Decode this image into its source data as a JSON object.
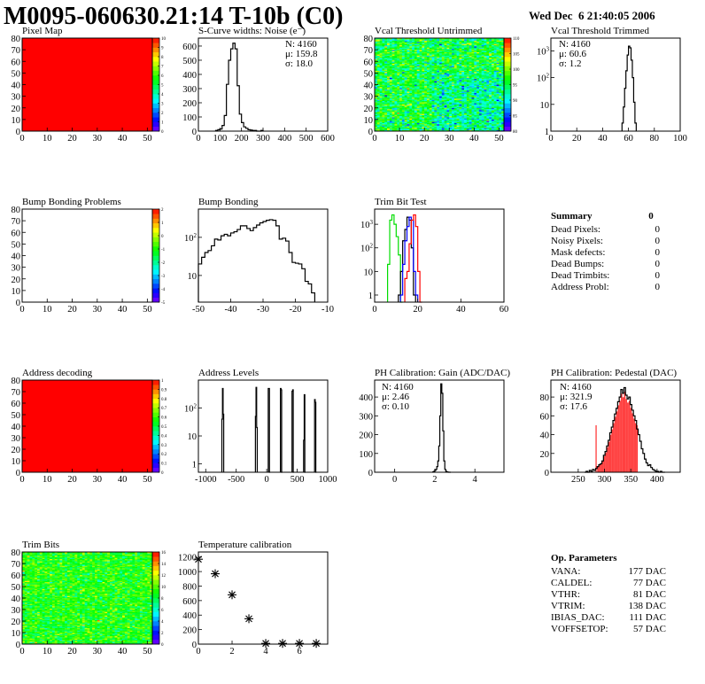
{
  "header": {
    "title": "M0095-060630.21:14 T-10b (C0)",
    "date": "Wed Dec  6 21:40:05 2006"
  },
  "chart_data": [
    {
      "id": "pixel_map",
      "type": "heatmap",
      "title": "Pixel Map",
      "xlim": [
        0,
        52
      ],
      "ylim": [
        0,
        80
      ],
      "xticks": [
        0,
        10,
        20,
        30,
        40,
        50
      ],
      "yticks": [
        0,
        10,
        20,
        30,
        40,
        50,
        60,
        70,
        80
      ],
      "zlim": [
        0,
        10
      ],
      "zticks": [
        "0",
        "1",
        "2",
        "3",
        "4",
        "5",
        "6",
        "7",
        "8",
        "9",
        "10"
      ],
      "uniform_value": 10
    },
    {
      "id": "scurve",
      "type": "bar",
      "title": "S-Curve widths: Noise (e⁻)",
      "xlim": [
        0,
        600
      ],
      "ylim": [
        0,
        656
      ],
      "xticks": [
        0,
        100,
        200,
        300,
        400,
        500,
        600
      ],
      "yticks": [
        0,
        100,
        200,
        300,
        400,
        500,
        600
      ],
      "stats": [
        "N: 4160",
        "μ: 159.8",
        "σ: 18.0"
      ],
      "bins": {
        "start": 80,
        "width": 10,
        "values": [
          5,
          10,
          15,
          40,
          110,
          330,
          500,
          580,
          620,
          580,
          320,
          120,
          60,
          30,
          20,
          10,
          8,
          5,
          5,
          0,
          0,
          5
        ]
      }
    },
    {
      "id": "vcal_untrimmed",
      "type": "heatmap",
      "title": "Vcal Threshold Untrimmed",
      "xlim": [
        0,
        52
      ],
      "ylim": [
        0,
        80
      ],
      "xticks": [
        0,
        10,
        20,
        30,
        40,
        50
      ],
      "yticks": [
        0,
        10,
        20,
        30,
        40,
        50,
        60,
        70,
        80
      ],
      "zlim": [
        78,
        113
      ],
      "zticks": [
        "80",
        "85",
        "90",
        "95",
        "100",
        "105",
        "110"
      ],
      "typical_value": 96,
      "spread": 4
    },
    {
      "id": "vcal_trimmed",
      "type": "bar",
      "title": "Vcal Threshold Trimmed",
      "log_y": true,
      "xlim": [
        0,
        100
      ],
      "ylim": [
        1,
        3000
      ],
      "xticks": [
        0,
        20,
        40,
        60,
        80,
        100
      ],
      "yticks": [
        1,
        10,
        100,
        1000
      ],
      "ytick_labels": [
        "1",
        "10",
        "10^2",
        "10^3"
      ],
      "stats": [
        "N: 4160",
        "μ: 60.6",
        "σ:  1.2"
      ],
      "bins": {
        "start": 55,
        "width": 1,
        "values": [
          2,
          8,
          40,
          180,
          700,
          1500,
          1300,
          450,
          100,
          12,
          2
        ]
      }
    },
    {
      "id": "bump_problems",
      "type": "heatmap",
      "title": "Bump Bonding Problems",
      "xlim": [
        0,
        52
      ],
      "ylim": [
        0,
        80
      ],
      "xticks": [
        0,
        10,
        20,
        30,
        40,
        50
      ],
      "yticks": [
        0,
        10,
        20,
        30,
        40,
        50,
        60,
        70,
        80
      ],
      "zlim": [
        -5,
        2
      ],
      "zticks": [
        "-5",
        "-4",
        "-3",
        "-2",
        "-1",
        "0",
        "1",
        "2"
      ],
      "empty": true
    },
    {
      "id": "bump_bonding",
      "type": "bar",
      "title": "Bump Bonding",
      "log_y": true,
      "xlim": [
        -50,
        -10
      ],
      "ylim": [
        2,
        550
      ],
      "xticks": [
        -50,
        -40,
        -30,
        -20,
        -10
      ],
      "yticks": [
        10,
        100
      ],
      "ytick_labels": [
        "10",
        "10^2"
      ],
      "bins": {
        "start": -50,
        "width": 1,
        "values": [
          20,
          30,
          40,
          45,
          60,
          90,
          85,
          110,
          120,
          110,
          130,
          140,
          160,
          200,
          200,
          170,
          150,
          180,
          210,
          240,
          260,
          280,
          290,
          280,
          200,
          90,
          95,
          80,
          40,
          22,
          21,
          20,
          15,
          7,
          6,
          3.5
        ]
      }
    },
    {
      "id": "trim_bit_test",
      "type": "bar",
      "title": "Trim Bit Test",
      "log_y": true,
      "xlim": [
        0,
        60
      ],
      "ylim": [
        0.5,
        4400
      ],
      "xticks": [
        0,
        20,
        40,
        60
      ],
      "yticks": [
        1,
        10,
        100,
        1000
      ],
      "ytick_labels": [
        "1",
        "10",
        "10^2",
        "10^3"
      ],
      "series": [
        {
          "color": "#00dd00",
          "bins": {
            "start": 6,
            "width": 1,
            "values": [
              20,
              1500,
              2500,
              1000,
              300,
              50,
              0.5
            ]
          }
        },
        {
          "color": "#000000",
          "bins": {
            "start": 11,
            "width": 1,
            "values": [
              1,
              10,
              200,
              600,
              2000,
              1500,
              100,
              1
            ]
          }
        },
        {
          "color": "#0000ff",
          "bins": {
            "start": 12,
            "width": 1,
            "values": [
              1,
              20,
              200,
              800,
              2000,
              1500,
              10,
              1
            ]
          }
        },
        {
          "color": "#ff0000",
          "bins": {
            "start": 14,
            "width": 1,
            "values": [
              5,
              10,
              150,
              1500,
              2500,
              800,
              10,
              0.5
            ]
          }
        }
      ]
    },
    {
      "id": "address_decoding",
      "type": "heatmap",
      "title": "Address decoding",
      "xlim": [
        0,
        52
      ],
      "ylim": [
        0,
        80
      ],
      "xticks": [
        0,
        10,
        20,
        30,
        40,
        50
      ],
      "yticks": [
        0,
        10,
        20,
        30,
        40,
        50,
        60,
        70,
        80
      ],
      "zlim": [
        0,
        1
      ],
      "zticks": [
        "0",
        "0.1",
        "0.2",
        "0.3",
        "0.4",
        "0.5",
        "0.6",
        "0.7",
        "0.8",
        "0.9",
        "1"
      ],
      "uniform_value": 1
    },
    {
      "id": "address_levels",
      "type": "bar",
      "title": "Address Levels",
      "log_y": true,
      "xlim": [
        -1120,
        1000
      ],
      "ylim": [
        0.5,
        1000
      ],
      "xticks": [
        -1000,
        -500,
        0,
        500,
        1000
      ],
      "yticks": [
        1,
        10,
        100
      ],
      "ytick_labels": [
        "1",
        "10",
        "10^2"
      ],
      "peaks": [
        {
          "x": -720,
          "values": [
            40,
            500,
            60
          ]
        },
        {
          "x": -170,
          "values": [
            50,
            550,
            20
          ]
        },
        {
          "x": 40,
          "values": [
            500,
            500,
            0.5
          ]
        },
        {
          "x": 240,
          "values": [
            500,
            450,
            0.5
          ]
        },
        {
          "x": 430,
          "values": [
            400,
            450,
            0.5
          ]
        },
        {
          "x": 620,
          "values": [
            7,
            300,
            0.5
          ]
        },
        {
          "x": 800,
          "values": [
            200,
            160,
            0.5
          ]
        }
      ]
    },
    {
      "id": "ph_gain",
      "type": "bar",
      "title": "PH Calibration: Gain (ADC/DAC)",
      "xlim": [
        -1,
        5.45
      ],
      "ylim": [
        0,
        490
      ],
      "xticks": [
        0,
        2,
        4
      ],
      "yticks": [
        0,
        100,
        200,
        300,
        400
      ],
      "stats": [
        "N: 4160",
        "μ: 2.46",
        "σ: 0.10"
      ],
      "bins": {
        "start": 1.9,
        "width": 0.05,
        "values": [
          2,
          5,
          10,
          15,
          30,
          60,
          140,
          300,
          470,
          420,
          220,
          60,
          15,
          5,
          2,
          1,
          0,
          0
        ]
      }
    },
    {
      "id": "ph_pedestal",
      "type": "bar",
      "title": "PH Calibration: Pedestal (DAC)",
      "xlim": [
        198,
        444
      ],
      "ylim": [
        0,
        98
      ],
      "xticks": [
        250,
        300,
        350,
        400
      ],
      "yticks": [
        0,
        20,
        40,
        60,
        80
      ],
      "stats": [
        "N: 4160",
        "μ: 321.9",
        "σ: 17.6"
      ],
      "stats_colors": [
        "#000000",
        "#ff0000",
        "#ff0000"
      ],
      "fit_range": [
        284,
        362
      ],
      "fit_color": "#ff0000",
      "bins": {
        "start": 262,
        "width": 3,
        "values": [
          0,
          1,
          0,
          2,
          1,
          3,
          2,
          4,
          6,
          8,
          9,
          12,
          18,
          22,
          28,
          34,
          42,
          48,
          55,
          62,
          68,
          75,
          80,
          88,
          84,
          90,
          82,
          78,
          80,
          72,
          66,
          60,
          55,
          46,
          40,
          33,
          25,
          20,
          14,
          10,
          7,
          8,
          5,
          3,
          2,
          1,
          1,
          0,
          1,
          0,
          0
        ]
      }
    },
    {
      "id": "trim_bits",
      "type": "heatmap",
      "title": "Trim Bits",
      "xlim": [
        0,
        52
      ],
      "ylim": [
        0,
        80
      ],
      "xticks": [
        0,
        10,
        20,
        30,
        40,
        50
      ],
      "yticks": [
        0,
        10,
        20,
        30,
        40,
        50,
        60,
        70,
        80
      ],
      "zlim": [
        0,
        16
      ],
      "zticks": [
        "0",
        "2",
        "4",
        "6",
        "8",
        "10",
        "12",
        "14",
        "16"
      ],
      "typical_value": 9,
      "spread": 1.3
    },
    {
      "id": "temperature",
      "type": "scatter",
      "title": "Temperature calibration",
      "marker": "asterisk",
      "xlim": [
        0,
        7.68
      ],
      "ylim": [
        0,
        1270
      ],
      "xticks": [
        0,
        2,
        4,
        6
      ],
      "yticks": [
        0,
        200,
        400,
        600,
        800,
        1000,
        1200
      ],
      "x": [
        0,
        1,
        2,
        3,
        4,
        5,
        6,
        7
      ],
      "y": [
        1170,
        970,
        680,
        350,
        10,
        10,
        10,
        10
      ]
    }
  ],
  "summary": {
    "title": "Summary",
    "total": "0",
    "rows": [
      {
        "label": "Dead Pixels:",
        "value": "0"
      },
      {
        "label": "Noisy Pixels:",
        "value": "0"
      },
      {
        "label": "Mask defects:",
        "value": "0"
      },
      {
        "label": "Dead Bumps:",
        "value": "0"
      },
      {
        "label": "Dead Trimbits:",
        "value": "0"
      },
      {
        "label": "Address Probl:",
        "value": "0"
      }
    ]
  },
  "op_parameters": {
    "title": "Op. Parameters",
    "rows": [
      {
        "label": "VANA:",
        "value": "177 DAC"
      },
      {
        "label": "CALDEL:",
        "value": "77 DAC"
      },
      {
        "label": "VTHR:",
        "value": "81 DAC"
      },
      {
        "label": "VTRIM:",
        "value": "138 DAC"
      },
      {
        "label": "IBIAS_DAC:",
        "value": "111 DAC"
      },
      {
        "label": "VOFFSETOP:",
        "value": "57 DAC"
      }
    ]
  }
}
